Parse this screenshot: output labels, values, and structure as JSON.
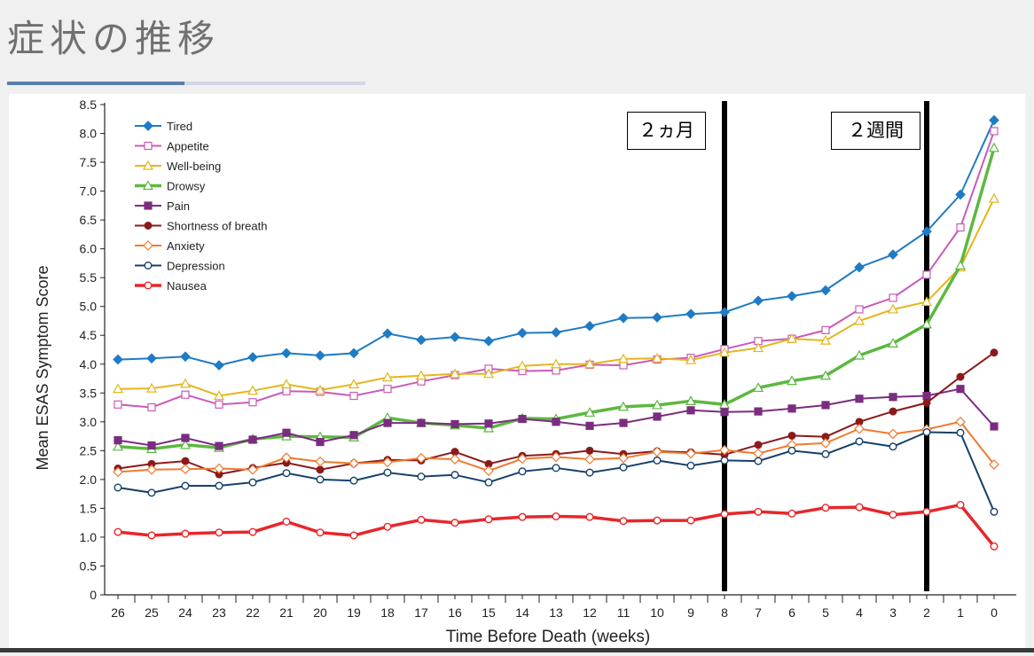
{
  "slide": {
    "title": "症状の推移"
  },
  "markers": [
    {
      "label": "２ヵ月",
      "week": 8
    },
    {
      "label": "２週間",
      "week": 2
    }
  ],
  "chart_data": {
    "type": "line",
    "xlabel": "Time Before Death (weeks)",
    "ylabel": "Mean ESAS Symptom Score",
    "ylim": [
      0,
      8.5
    ],
    "yticks": [
      "0",
      "0.5",
      "1.0",
      "1.5",
      "2.0",
      "2.5",
      "3.0",
      "3.5",
      "4.0",
      "4.5",
      "5.0",
      "5.5",
      "6.0",
      "6.5",
      "7.0",
      "7.5",
      "8.0",
      "8.5"
    ],
    "x": [
      26,
      25,
      24,
      23,
      22,
      21,
      20,
      19,
      18,
      17,
      16,
      15,
      14,
      13,
      12,
      11,
      10,
      9,
      8,
      7,
      6,
      5,
      4,
      3,
      2,
      1,
      0
    ],
    "legend_position": "top-left",
    "grid": false,
    "series": [
      {
        "name": "Tired",
        "color": "#1f7bc4",
        "marker": "diamond",
        "values": [
          4.08,
          4.1,
          4.13,
          3.98,
          4.12,
          4.19,
          4.15,
          4.19,
          4.53,
          4.42,
          4.47,
          4.4,
          4.54,
          4.55,
          4.66,
          4.8,
          4.81,
          4.87,
          4.9,
          5.1,
          5.18,
          5.28,
          5.68,
          5.9,
          6.3,
          6.94,
          8.23
        ]
      },
      {
        "name": "Appetite",
        "color": "#c85bb8",
        "marker": "square-open",
        "values": [
          3.3,
          3.25,
          3.47,
          3.3,
          3.34,
          3.53,
          3.52,
          3.45,
          3.57,
          3.7,
          3.81,
          3.92,
          3.88,
          3.89,
          3.99,
          3.98,
          4.08,
          4.11,
          4.26,
          4.4,
          4.44,
          4.59,
          4.95,
          5.15,
          5.55,
          6.37,
          8.04
        ]
      },
      {
        "name": "Well-being",
        "color": "#e5b51c",
        "marker": "triangle-open",
        "values": [
          3.57,
          3.58,
          3.66,
          3.45,
          3.54,
          3.65,
          3.55,
          3.65,
          3.77,
          3.8,
          3.83,
          3.83,
          3.97,
          4.0,
          4.0,
          4.09,
          4.1,
          4.07,
          4.2,
          4.28,
          4.44,
          4.41,
          4.75,
          4.95,
          5.08,
          5.68,
          6.87
        ]
      },
      {
        "name": "Drowsy",
        "color": "#5cb840",
        "marker": "triangle-open",
        "values": [
          2.57,
          2.53,
          2.6,
          2.55,
          2.7,
          2.75,
          2.74,
          2.73,
          3.07,
          2.98,
          2.94,
          2.89,
          3.06,
          3.05,
          3.16,
          3.26,
          3.29,
          3.36,
          3.3,
          3.59,
          3.71,
          3.8,
          4.15,
          4.36,
          4.69,
          5.71,
          7.75
        ]
      },
      {
        "name": "Pain",
        "color": "#7a2d80",
        "marker": "square",
        "values": [
          2.68,
          2.59,
          2.72,
          2.58,
          2.69,
          2.81,
          2.65,
          2.77,
          2.98,
          2.98,
          2.96,
          2.97,
          3.05,
          3.0,
          2.93,
          2.98,
          3.09,
          3.2,
          3.17,
          3.18,
          3.23,
          3.29,
          3.4,
          3.43,
          3.45,
          3.57,
          2.92
        ]
      },
      {
        "name": "Shortness of breath",
        "color": "#8c1a1a",
        "marker": "circle",
        "values": [
          2.19,
          2.27,
          2.32,
          2.09,
          2.2,
          2.29,
          2.17,
          2.28,
          2.34,
          2.33,
          2.48,
          2.27,
          2.41,
          2.44,
          2.5,
          2.44,
          2.49,
          2.47,
          2.43,
          2.6,
          2.76,
          2.74,
          3.0,
          3.18,
          3.33,
          3.78,
          4.2
        ]
      },
      {
        "name": "Anxiety",
        "color": "#ee7a30",
        "marker": "diamond-open",
        "values": [
          2.13,
          2.17,
          2.18,
          2.19,
          2.17,
          2.38,
          2.31,
          2.28,
          2.3,
          2.37,
          2.35,
          2.15,
          2.36,
          2.39,
          2.35,
          2.37,
          2.48,
          2.45,
          2.51,
          2.45,
          2.6,
          2.63,
          2.88,
          2.79,
          2.87,
          3.0,
          2.26
        ]
      },
      {
        "name": "Depression",
        "color": "#17416b",
        "marker": "circle-open",
        "values": [
          1.86,
          1.77,
          1.89,
          1.89,
          1.95,
          2.11,
          2.0,
          1.98,
          2.12,
          2.05,
          2.08,
          1.95,
          2.14,
          2.2,
          2.12,
          2.21,
          2.33,
          2.24,
          2.33,
          2.32,
          2.5,
          2.44,
          2.66,
          2.57,
          2.82,
          2.81,
          1.44
        ]
      },
      {
        "name": "Nausea",
        "color": "#e8262a",
        "marker": "circle-open",
        "values": [
          1.09,
          1.03,
          1.06,
          1.08,
          1.09,
          1.27,
          1.08,
          1.03,
          1.18,
          1.3,
          1.25,
          1.31,
          1.35,
          1.36,
          1.35,
          1.28,
          1.29,
          1.29,
          1.4,
          1.44,
          1.41,
          1.51,
          1.52,
          1.39,
          1.44,
          1.56,
          0.84
        ]
      }
    ]
  }
}
